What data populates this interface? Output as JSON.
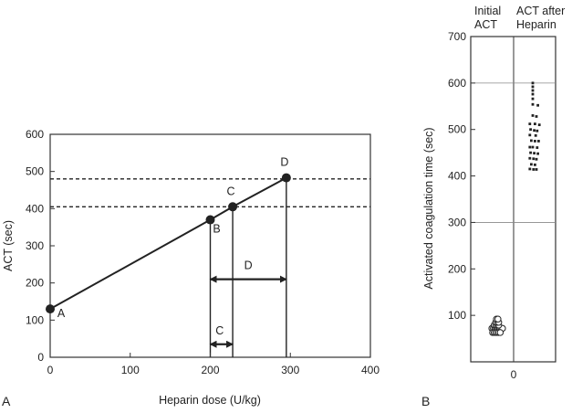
{
  "colors": {
    "ink": "#222222",
    "frame": "#333333",
    "grid": "#888888",
    "dot_fill": "#ffffff"
  },
  "chart_data": [
    {
      "type": "line",
      "panel_label": "A",
      "title": "",
      "xlabel": "Heparin dose (U/kg)",
      "ylabel": "ACT (sec)",
      "xlim": [
        0,
        400
      ],
      "ylim": [
        0,
        600
      ],
      "x_ticks": [
        0,
        100,
        200,
        300,
        400
      ],
      "y_ticks": [
        0,
        100,
        200,
        300,
        400,
        500,
        600
      ],
      "grid": false,
      "series": [
        {
          "x": [
            0,
            200,
            228,
            295
          ],
          "y": [
            130,
            370,
            405,
            483
          ],
          "style": "solid line with filled points"
        }
      ],
      "points": [
        {
          "label": "A",
          "x": 0,
          "y": 130
        },
        {
          "label": "B",
          "x": 200,
          "y": 370
        },
        {
          "label": "C",
          "x": 228,
          "y": 405
        },
        {
          "label": "D",
          "x": 295,
          "y": 483
        }
      ],
      "dashed_reference_lines_y": [
        405,
        480
      ],
      "vertical_drop_lines_x": [
        200,
        228,
        295
      ],
      "double_arrows": [
        {
          "label": "D",
          "x_from": 200,
          "x_to": 295,
          "y": 210
        },
        {
          "label": "C",
          "x_from": 200,
          "x_to": 228,
          "y": 35
        }
      ]
    },
    {
      "type": "scatter",
      "panel_label": "B",
      "title": "",
      "categories": [
        "Initial ACT",
        "ACT after Heparin"
      ],
      "xlabel": "",
      "ylabel": "Activated coagulation time (sec)",
      "ylim": [
        0,
        700
      ],
      "y_ticks": [
        100,
        200,
        300,
        400,
        500,
        600,
        700
      ],
      "x_tick_labels": [
        "0"
      ],
      "grid": true,
      "gridlines_y": [
        300,
        600
      ],
      "series": [
        {
          "name": "Initial ACT",
          "style": "open circles",
          "points": [
            {
              "x": -0.21,
              "y": 72
            },
            {
              "x": -0.15,
              "y": 72
            },
            {
              "x": -0.09,
              "y": 72
            },
            {
              "x": -0.03,
              "y": 72
            },
            {
              "x": 0.03,
              "y": 72
            },
            {
              "x": 0.09,
              "y": 72
            },
            {
              "x": 0.15,
              "y": 72
            },
            {
              "x": 0.21,
              "y": 72
            },
            {
              "x": -0.18,
              "y": 63
            },
            {
              "x": -0.12,
              "y": 63
            },
            {
              "x": -0.06,
              "y": 63
            },
            {
              "x": 0,
              "y": 63
            },
            {
              "x": 0.06,
              "y": 63
            },
            {
              "x": 0.12,
              "y": 63
            },
            {
              "x": -0.12,
              "y": 79
            },
            {
              "x": -0.06,
              "y": 79
            },
            {
              "x": 0,
              "y": 79
            },
            {
              "x": 0.06,
              "y": 79
            },
            {
              "x": -0.06,
              "y": 85
            },
            {
              "x": 0,
              "y": 85
            },
            {
              "x": 0.06,
              "y": 85
            },
            {
              "x": -0.03,
              "y": 92
            },
            {
              "x": 0.03,
              "y": 92
            }
          ]
        },
        {
          "name": "ACT after Heparin",
          "style": "small filled dots",
          "points": [
            {
              "x": 0,
              "y": 600
            },
            {
              "x": 0,
              "y": 592
            },
            {
              "x": 0,
              "y": 584
            },
            {
              "x": 0,
              "y": 576
            },
            {
              "x": 0,
              "y": 566
            },
            {
              "x": 0,
              "y": 554
            },
            {
              "x": 0.35,
              "y": 552
            },
            {
              "x": 0,
              "y": 530
            },
            {
              "x": 0.25,
              "y": 528
            },
            {
              "x": -0.2,
              "y": 512
            },
            {
              "x": 0.15,
              "y": 512
            },
            {
              "x": 0.45,
              "y": 510
            },
            {
              "x": -0.15,
              "y": 500
            },
            {
              "x": 0.1,
              "y": 498
            },
            {
              "x": 0.3,
              "y": 497
            },
            {
              "x": -0.2,
              "y": 488
            },
            {
              "x": 0.2,
              "y": 487
            },
            {
              "x": -0.1,
              "y": 476
            },
            {
              "x": 0.15,
              "y": 475
            },
            {
              "x": 0.4,
              "y": 475
            },
            {
              "x": -0.2,
              "y": 462
            },
            {
              "x": 0,
              "y": 462
            },
            {
              "x": 0.3,
              "y": 461
            },
            {
              "x": -0.15,
              "y": 450
            },
            {
              "x": 0.1,
              "y": 449
            },
            {
              "x": 0.35,
              "y": 448
            },
            {
              "x": -0.2,
              "y": 438
            },
            {
              "x": 0.05,
              "y": 437
            },
            {
              "x": 0.25,
              "y": 436
            },
            {
              "x": -0.1,
              "y": 425
            },
            {
              "x": 0.15,
              "y": 424
            },
            {
              "x": -0.2,
              "y": 415
            },
            {
              "x": 0.05,
              "y": 414
            },
            {
              "x": 0.25,
              "y": 414
            }
          ]
        }
      ]
    }
  ]
}
